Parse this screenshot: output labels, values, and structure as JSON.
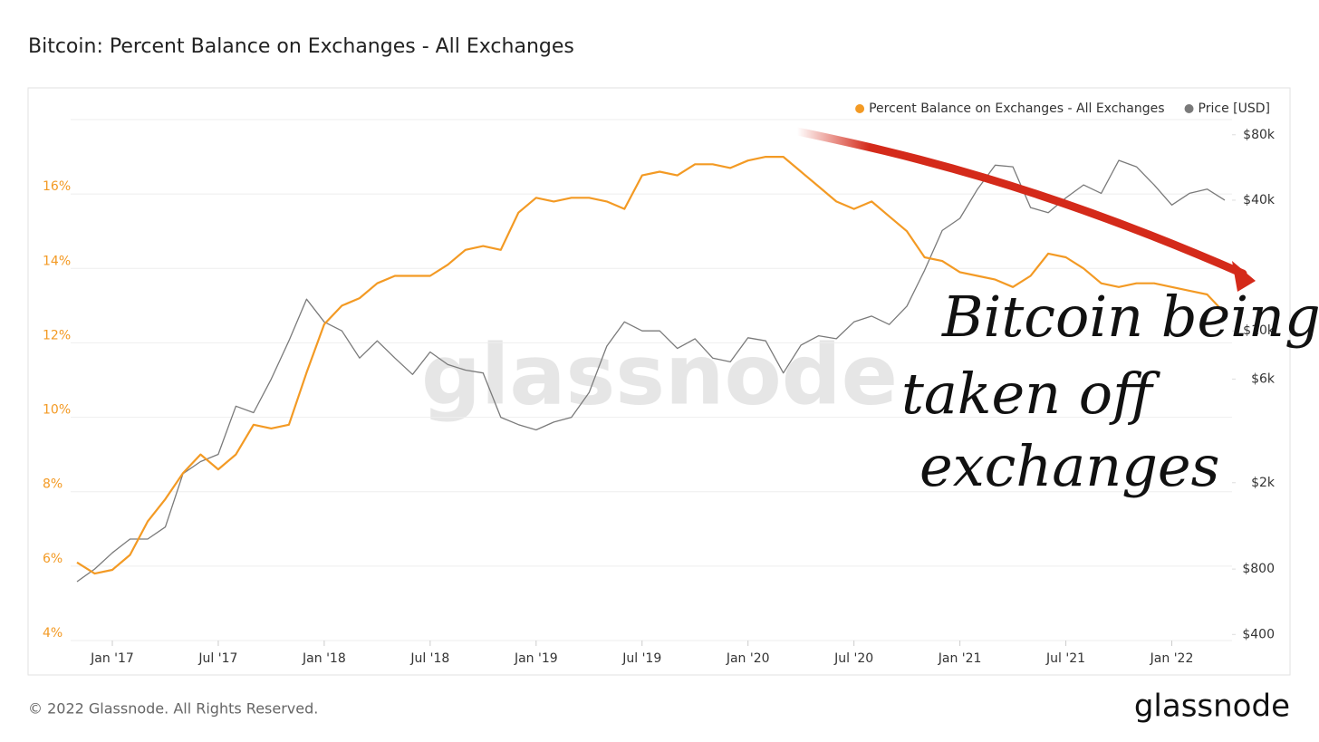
{
  "chart_data": {
    "type": "line",
    "title": "Bitcoin: Percent Balance on Exchanges - All Exchanges",
    "watermark": "glassnode",
    "footer": "© 2022 Glassnode. All Rights Reserved.",
    "logo": "glassnode",
    "annotations": [
      "Bitcoin being",
      "taken off",
      "exchanges"
    ],
    "x": [
      "2016-11",
      "2016-12",
      "2017-01",
      "2017-02",
      "2017-03",
      "2017-04",
      "2017-05",
      "2017-06",
      "2017-07",
      "2017-08",
      "2017-09",
      "2017-10",
      "2017-11",
      "2017-12",
      "2018-01",
      "2018-02",
      "2018-03",
      "2018-04",
      "2018-05",
      "2018-06",
      "2018-07",
      "2018-08",
      "2018-09",
      "2018-10",
      "2018-11",
      "2018-12",
      "2019-01",
      "2019-02",
      "2019-03",
      "2019-04",
      "2019-05",
      "2019-06",
      "2019-07",
      "2019-08",
      "2019-09",
      "2019-10",
      "2019-11",
      "2019-12",
      "2020-01",
      "2020-02",
      "2020-03",
      "2020-04",
      "2020-05",
      "2020-06",
      "2020-07",
      "2020-08",
      "2020-09",
      "2020-10",
      "2020-11",
      "2020-12",
      "2021-01",
      "2021-02",
      "2021-03",
      "2021-04",
      "2021-05",
      "2021-06",
      "2021-07",
      "2021-08",
      "2021-09",
      "2021-10",
      "2021-11",
      "2021-12",
      "2022-01",
      "2022-02",
      "2022-03",
      "2022-04"
    ],
    "xlim": [
      "2016-11",
      "2022-04"
    ],
    "xticks": [
      {
        "value": "2017-01",
        "label": "Jan '17"
      },
      {
        "value": "2017-07",
        "label": "Jul '17"
      },
      {
        "value": "2018-01",
        "label": "Jan '18"
      },
      {
        "value": "2018-07",
        "label": "Jul '18"
      },
      {
        "value": "2019-01",
        "label": "Jan '19"
      },
      {
        "value": "2019-07",
        "label": "Jul '19"
      },
      {
        "value": "2020-01",
        "label": "Jan '20"
      },
      {
        "value": "2020-07",
        "label": "Jul '20"
      },
      {
        "value": "2021-01",
        "label": "Jan '21"
      },
      {
        "value": "2021-07",
        "label": "Jul '21"
      },
      {
        "value": "2022-01",
        "label": "Jan '22"
      }
    ],
    "ylim": [
      4,
      18
    ],
    "yticks": [
      {
        "value": 4,
        "label": "4%"
      },
      {
        "value": 6,
        "label": "6%"
      },
      {
        "value": 8,
        "label": "8%"
      },
      {
        "value": 10,
        "label": "10%"
      },
      {
        "value": 12,
        "label": "12%"
      },
      {
        "value": 14,
        "label": "14%"
      },
      {
        "value": 16,
        "label": "16%"
      }
    ],
    "y2lim": [
      375,
      94000
    ],
    "y2log": true,
    "y2ticks": [
      {
        "value": 400,
        "label": "$400"
      },
      {
        "value": 800,
        "label": "$800"
      },
      {
        "value": 2000,
        "label": "$2k"
      },
      {
        "value": 6000,
        "label": "$6k"
      },
      {
        "value": 10000,
        "label": "$10k"
      },
      {
        "value": 40000,
        "label": "$40k"
      },
      {
        "value": 80000,
        "label": "$80k"
      }
    ],
    "grid": true,
    "legend": "top-right",
    "series": [
      {
        "name": "Percent Balance on Exchanges - All Exchanges",
        "color": "#f39a24",
        "values": [
          6.1,
          5.8,
          5.9,
          6.3,
          7.2,
          7.8,
          8.5,
          9.0,
          8.6,
          9.0,
          9.8,
          9.7,
          9.8,
          11.2,
          12.5,
          13.0,
          13.2,
          13.6,
          13.8,
          13.8,
          13.8,
          14.1,
          14.5,
          14.6,
          14.5,
          15.5,
          15.9,
          15.8,
          15.9,
          15.9,
          15.8,
          15.6,
          16.5,
          16.6,
          16.5,
          16.8,
          16.8,
          16.7,
          16.9,
          17.0,
          17.0,
          16.6,
          16.2,
          15.8,
          15.6,
          15.8,
          15.4,
          15.0,
          14.3,
          14.2,
          13.9,
          13.8,
          13.7,
          13.5,
          13.8,
          14.4,
          14.3,
          14.0,
          13.6,
          13.5,
          13.6,
          13.6,
          13.5,
          13.4,
          13.3,
          12.8
        ]
      },
      {
        "name": "Price [USD]",
        "color": "#7a7a7a",
        "axis": "y2",
        "values": [
          700,
          800,
          950,
          1100,
          1100,
          1250,
          2200,
          2500,
          2700,
          4500,
          4200,
          6000,
          9000,
          14000,
          11000,
          10000,
          7500,
          9000,
          7500,
          6300,
          8000,
          7000,
          6600,
          6400,
          4000,
          3700,
          3500,
          3800,
          4000,
          5200,
          8500,
          11000,
          10000,
          10000,
          8300,
          9200,
          7500,
          7200,
          9300,
          9000,
          6400,
          8600,
          9500,
          9200,
          11000,
          11700,
          10700,
          13000,
          19000,
          29000,
          33000,
          45000,
          58000,
          57000,
          37000,
          35000,
          41000,
          47000,
          43000,
          61000,
          57000,
          47000,
          38000,
          43000,
          45000,
          40000
        ]
      }
    ]
  }
}
